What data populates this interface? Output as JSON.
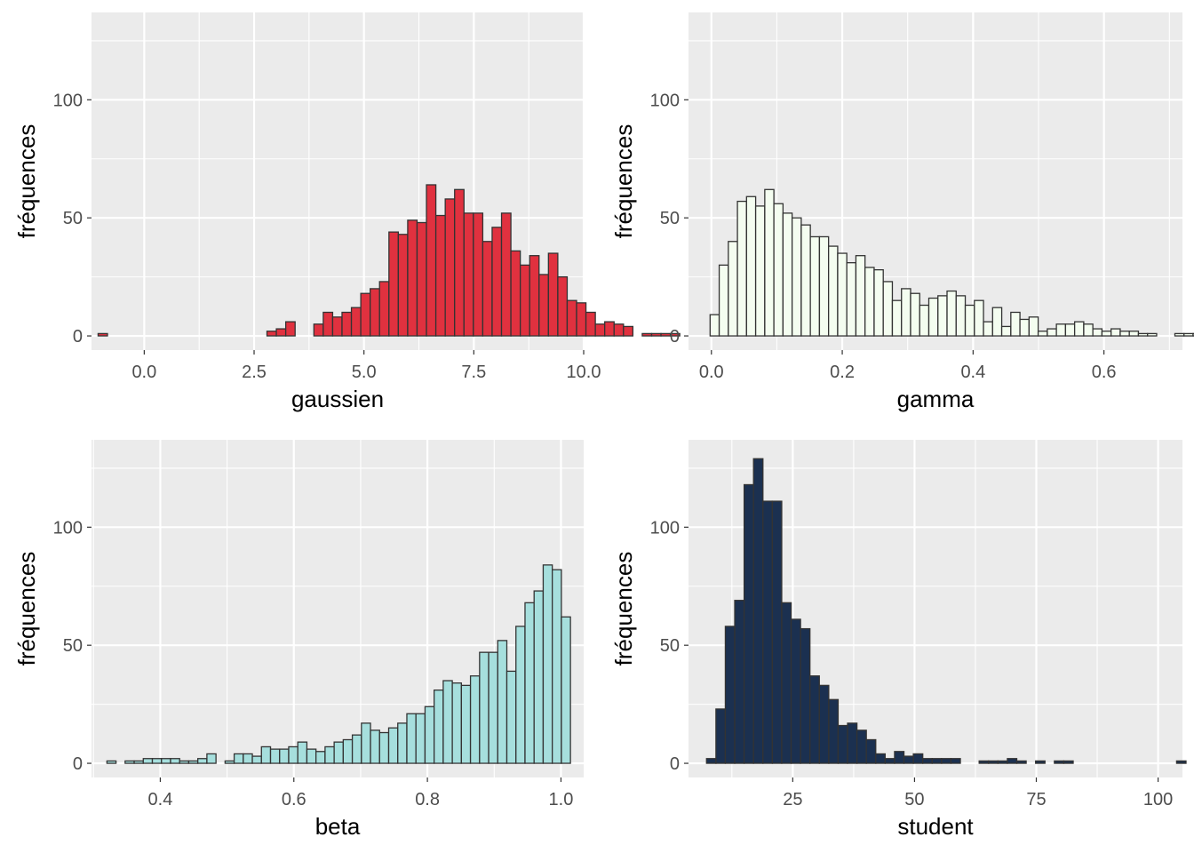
{
  "ylabel": "fréquences",
  "panel_bg": "#ebebeb",
  "grid_color": "#ffffff",
  "bar_outline": "#333333",
  "chart_data": [
    {
      "type": "bar",
      "xlabel": "gaussien",
      "ylabel": "fréquences",
      "fill": "#e0313f",
      "xlim": [
        -1.2,
        10.0
      ],
      "ylim": [
        -6,
        137
      ],
      "xticks": [
        0.0,
        2.5,
        5.0,
        7.5,
        10.0
      ],
      "xtick_labels": [
        "0.0",
        "2.5",
        "5.0",
        "7.5",
        "10.0"
      ],
      "yticks": [
        0,
        50,
        100
      ],
      "ytick_labels": [
        "0",
        "50",
        "100"
      ],
      "bin_start": -1.05,
      "bin_width": 0.2135,
      "values": [
        1,
        0,
        0,
        0,
        0,
        0,
        0,
        0,
        0,
        0,
        0,
        0,
        0,
        0,
        0,
        0,
        0,
        0,
        2,
        3,
        6,
        0,
        0,
        5,
        10,
        8,
        10,
        12,
        18,
        20,
        23,
        44,
        43,
        49,
        48,
        64,
        51,
        58,
        62,
        52,
        52,
        40,
        46,
        52,
        36,
        30,
        34,
        26,
        35,
        25,
        15,
        14,
        10,
        5,
        6,
        5,
        4,
        0,
        1,
        1,
        1,
        1
      ]
    },
    {
      "type": "bar",
      "xlabel": "gamma",
      "ylabel": "fréquences",
      "fill": "#f4fdf0",
      "xlim": [
        -0.035,
        0.72
      ],
      "ylim": [
        -6,
        137
      ],
      "xticks": [
        0.0,
        0.2,
        0.4,
        0.6
      ],
      "xtick_labels": [
        "0.0",
        "0.2",
        "0.4",
        "0.6"
      ],
      "yticks": [
        0,
        50,
        100
      ],
      "ytick_labels": [
        "0",
        "50",
        "100"
      ],
      "bin_start": -0.002,
      "bin_width": 0.01393,
      "values": [
        9,
        30,
        40,
        57,
        59,
        55,
        62,
        56,
        52,
        50,
        47,
        42,
        42,
        38,
        35,
        31,
        34,
        29,
        28,
        23,
        15,
        20,
        18,
        13,
        16,
        17,
        19,
        17,
        13,
        15,
        6,
        12,
        4,
        10,
        7,
        8,
        2,
        3,
        5,
        5,
        6,
        5,
        3,
        2,
        3,
        2,
        2,
        1,
        1,
        0,
        0,
        1,
        1,
        1,
        0,
        0,
        0,
        1,
        1,
        1,
        1,
        1,
        1,
        1,
        1
      ]
    },
    {
      "type": "bar",
      "xlabel": "beta",
      "ylabel": "fréquences",
      "fill": "#a6dfdd",
      "xlim": [
        0.297,
        1.034
      ],
      "ylim": [
        -6,
        137
      ],
      "xticks": [
        0.4,
        0.6,
        0.8,
        1.0
      ],
      "xtick_labels": [
        "0.4",
        "0.6",
        "0.8",
        "1.0"
      ],
      "yticks": [
        0,
        50,
        100
      ],
      "ytick_labels": [
        "0",
        "50",
        "100"
      ],
      "bin_start": 0.3201,
      "bin_width": 0.01361,
      "values": [
        1,
        0,
        1,
        1,
        2,
        2,
        2,
        2,
        1,
        1,
        2,
        4,
        0,
        1,
        4,
        4,
        3,
        7,
        6,
        6,
        7,
        9,
        6,
        5,
        7,
        9,
        10,
        12,
        17,
        14,
        13,
        15,
        17,
        21,
        21,
        24,
        31,
        35,
        34,
        33,
        37,
        47,
        47,
        52,
        39,
        58,
        68,
        73,
        84,
        82,
        62
      ]
    },
    {
      "type": "bar",
      "xlabel": "student",
      "ylabel": "fréquences",
      "fill": "#1b3050",
      "xlim": [
        3.6,
        105.0
      ],
      "ylim": [
        -6,
        137
      ],
      "xticks": [
        25,
        50,
        75,
        100
      ],
      "xtick_labels": [
        "25",
        "50",
        "75",
        "100"
      ],
      "yticks": [
        0,
        50,
        100
      ],
      "ytick_labels": [
        "0",
        "50",
        "100"
      ],
      "bin_start": 7.3,
      "bin_width": 1.93,
      "values": [
        2,
        23,
        58,
        69,
        118,
        129,
        111,
        111,
        68,
        61,
        57,
        37,
        33,
        27,
        16,
        17,
        14,
        10,
        4,
        2,
        5,
        3,
        4,
        2,
        2,
        2,
        2,
        0,
        0,
        1,
        1,
        1,
        2,
        1,
        0,
        1,
        0,
        1,
        1,
        0,
        0,
        0,
        0,
        0,
        0,
        0,
        0,
        0,
        0,
        0,
        1,
        0,
        0,
        0,
        0,
        0,
        0,
        0,
        0,
        0,
        0,
        0,
        0,
        0,
        0,
        0,
        1,
        0,
        0,
        0,
        0,
        0,
        0,
        0,
        0,
        0,
        0,
        0,
        0,
        0,
        0,
        0,
        0,
        0,
        0,
        0,
        1,
        0,
        0,
        0,
        0,
        0,
        0,
        0,
        0,
        0,
        0,
        0,
        0,
        0,
        0,
        0,
        0,
        0,
        0,
        0,
        0,
        0,
        0,
        0,
        1,
        0
      ]
    }
  ]
}
